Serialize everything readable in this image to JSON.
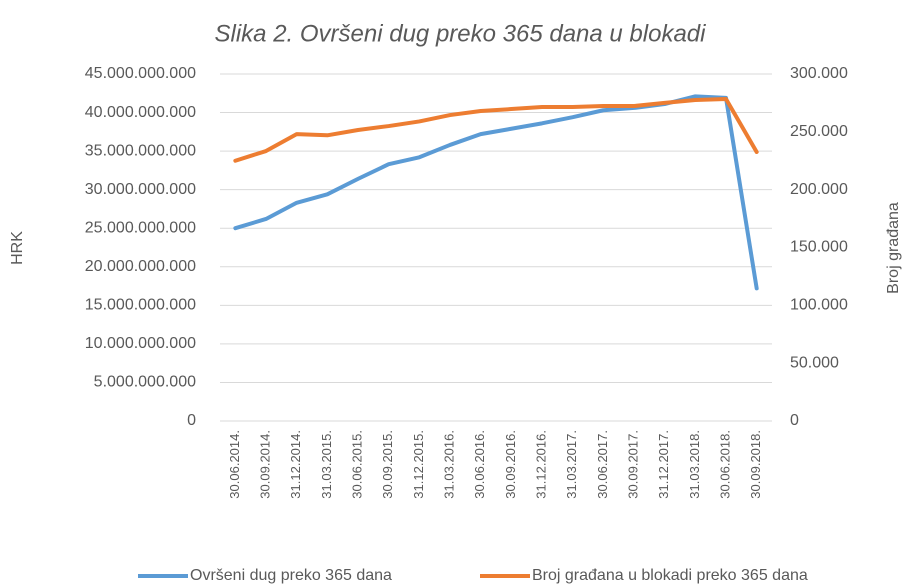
{
  "chart_data": {
    "type": "line",
    "title": "Slika 2. Ovršeni dug preko 365 dana u blokadi",
    "ylabel": "HRK",
    "y2label": "Broj građana",
    "categories": [
      "30.06.2014.",
      "30.09.2014.",
      "31.12.2014.",
      "31.03.2015.",
      "30.06.2015.",
      "30.09.2015.",
      "31.12.2015.",
      "31.03.2016.",
      "30.06.2016.",
      "30.09.2016.",
      "31.12.2016.",
      "31.03.2017.",
      "30.06.2017.",
      "30.09.2017.",
      "31.12.2017.",
      "31.03.2018.",
      "30.06.2018.",
      "30.09.2018."
    ],
    "series": [
      {
        "name": "Ovršeni dug preko 365 dana",
        "color": "#5b9bd5",
        "axis": "y",
        "values": [
          25000000000,
          26200000000,
          28300000000,
          29400000000,
          31400000000,
          33300000000,
          34200000000,
          35800000000,
          37200000000,
          37900000000,
          38600000000,
          39400000000,
          40300000000,
          40600000000,
          41100000000,
          42100000000,
          41900000000,
          17200000000
        ]
      },
      {
        "name": "Broj građana u blokadi preko 365 dana",
        "color": "#ed7d31",
        "axis": "y2",
        "values": [
          225000,
          233400,
          248000,
          247000,
          251600,
          255000,
          259000,
          264500,
          268000,
          269700,
          271500,
          271500,
          272300,
          272300,
          275000,
          277500,
          278400,
          232600
        ]
      }
    ],
    "ylim": [
      0,
      45000000000
    ],
    "yticks": [
      0,
      {
        "value": 5000000000,
        "label": "5.000.000.000"
      },
      {
        "value": 10000000000,
        "label": "10.000.000.000"
      },
      {
        "value": 15000000000,
        "label": "15.000.000.000"
      },
      {
        "value": 20000000000,
        "label": "20.000.000.000"
      },
      {
        "value": 25000000000,
        "label": "25.000.000.000"
      },
      {
        "value": 30000000000,
        "label": "30.000.000.000"
      },
      {
        "value": 35000000000,
        "label": "35.000.000.000"
      },
      {
        "value": 40000000000,
        "label": "40.000.000.000"
      },
      {
        "value": 45000000000,
        "label": "45.000.000.000"
      }
    ],
    "y2lim": [
      0,
      300000
    ],
    "y2ticks": [
      0,
      {
        "value": 50000,
        "label": "50.000"
      },
      {
        "value": 100000,
        "label": "100.000"
      },
      {
        "value": 150000,
        "label": "150.000"
      },
      {
        "value": 200000,
        "label": "200.000"
      },
      {
        "value": 250000,
        "label": "250.000"
      },
      {
        "value": 300000,
        "label": "300.000"
      }
    ],
    "grid": true,
    "legend": "bottom"
  }
}
